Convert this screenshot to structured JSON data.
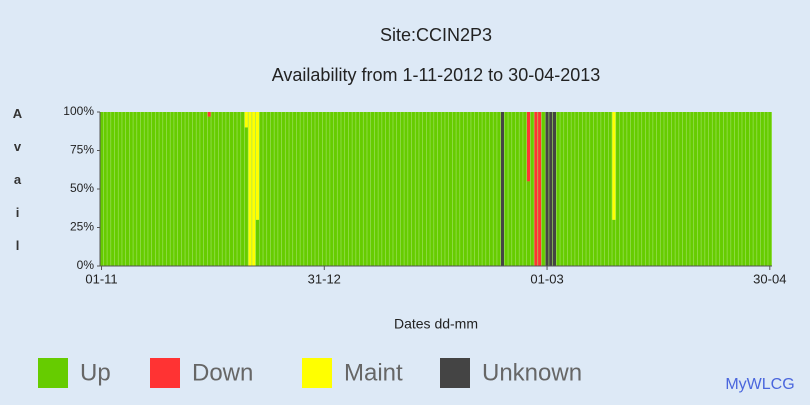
{
  "chart_data": {
    "type": "stacked_bar",
    "title": "Site:CCIN2P3",
    "subtitle": "Availability from 1-11-2012 to 30-04-2013",
    "x_label": "Dates dd-mm",
    "y_label": "Avail",
    "footer": "MyWLCG",
    "categories": [
      "01-11",
      null,
      null,
      null,
      null,
      null,
      null,
      null,
      null,
      null,
      null,
      null,
      null,
      null,
      null,
      null,
      null,
      null,
      null,
      null,
      null,
      null,
      null,
      null,
      null,
      null,
      null,
      null,
      null,
      null,
      null,
      null,
      null,
      null,
      null,
      null,
      null,
      null,
      null,
      null,
      null,
      null,
      null,
      null,
      null,
      null,
      null,
      null,
      null,
      null,
      null,
      null,
      null,
      null,
      null,
      null,
      null,
      null,
      null,
      null,
      "31-12",
      null,
      null,
      null,
      null,
      null,
      null,
      null,
      null,
      null,
      null,
      null,
      null,
      null,
      null,
      null,
      null,
      null,
      null,
      null,
      null,
      null,
      null,
      null,
      null,
      null,
      null,
      null,
      null,
      null,
      null,
      null,
      null,
      null,
      null,
      null,
      null,
      null,
      null,
      null,
      null,
      null,
      null,
      null,
      null,
      null,
      null,
      null,
      null,
      null,
      null,
      null,
      null,
      null,
      null,
      null,
      null,
      null,
      null,
      null,
      "01-03",
      null,
      null,
      null,
      null,
      null,
      null,
      null,
      null,
      null,
      null,
      null,
      null,
      null,
      null,
      null,
      null,
      null,
      null,
      null,
      null,
      null,
      null,
      null,
      null,
      null,
      null,
      null,
      null,
      null,
      null,
      null,
      null,
      null,
      null,
      null,
      null,
      null,
      null,
      null,
      null,
      null,
      null,
      null,
      null,
      null,
      null,
      null,
      null,
      null,
      null,
      null,
      null,
      null,
      null,
      null,
      null,
      null,
      null,
      null,
      "30-04"
    ],
    "series": [
      {
        "name": "Up",
        "color": "#66cc00",
        "values": [
          100,
          100,
          100,
          100,
          100,
          100,
          100,
          100,
          100,
          100,
          100,
          100,
          100,
          100,
          100,
          100,
          100,
          100,
          100,
          100,
          100,
          100,
          100,
          100,
          100,
          100,
          100,
          100,
          100,
          97,
          100,
          100,
          100,
          100,
          100,
          100,
          100,
          100,
          100,
          90,
          0,
          0,
          30,
          100,
          100,
          100,
          100,
          100,
          100,
          100,
          100,
          100,
          100,
          100,
          100,
          100,
          100,
          100,
          100,
          100,
          100,
          100,
          100,
          100,
          100,
          100,
          100,
          100,
          100,
          100,
          100,
          100,
          100,
          100,
          100,
          100,
          100,
          100,
          100,
          100,
          100,
          100,
          100,
          100,
          100,
          100,
          100,
          100,
          100,
          100,
          100,
          100,
          100,
          100,
          100,
          100,
          100,
          100,
          100,
          100,
          100,
          100,
          100,
          100,
          100,
          100,
          100,
          100,
          0,
          100,
          100,
          100,
          100,
          100,
          100,
          55,
          100,
          0,
          0,
          100,
          0,
          0,
          0,
          100,
          100,
          100,
          100,
          100,
          100,
          100,
          100,
          100,
          100,
          100,
          100,
          100,
          100,
          100,
          30,
          100,
          100,
          100,
          100,
          100,
          100,
          100,
          100,
          100,
          100,
          100,
          100,
          100,
          100,
          100,
          100,
          100,
          100,
          100,
          100,
          100,
          100,
          100,
          100,
          100,
          100,
          100,
          100,
          100,
          100,
          100,
          100,
          100,
          100,
          100,
          100,
          100,
          100,
          100,
          100,
          100,
          100
        ]
      },
      {
        "name": "Down",
        "color": "#ff3333",
        "values": [
          0,
          0,
          0,
          0,
          0,
          0,
          0,
          0,
          0,
          0,
          0,
          0,
          0,
          0,
          0,
          0,
          0,
          0,
          0,
          0,
          0,
          0,
          0,
          0,
          0,
          0,
          0,
          0,
          0,
          3,
          0,
          0,
          0,
          0,
          0,
          0,
          0,
          0,
          0,
          0,
          0,
          0,
          0,
          0,
          0,
          0,
          0,
          0,
          0,
          0,
          0,
          0,
          0,
          0,
          0,
          0,
          0,
          0,
          0,
          0,
          0,
          0,
          0,
          0,
          0,
          0,
          0,
          0,
          0,
          0,
          0,
          0,
          0,
          0,
          0,
          0,
          0,
          0,
          0,
          0,
          0,
          0,
          0,
          0,
          0,
          0,
          0,
          0,
          0,
          0,
          0,
          0,
          0,
          0,
          0,
          0,
          0,
          0,
          0,
          0,
          0,
          0,
          0,
          0,
          0,
          0,
          0,
          0,
          0,
          0,
          0,
          0,
          0,
          0,
          0,
          45,
          0,
          100,
          100,
          0,
          0,
          0,
          0,
          0,
          0,
          0,
          0,
          0,
          0,
          0,
          0,
          0,
          0,
          0,
          0,
          0,
          0,
          0,
          0,
          0,
          0,
          0,
          0,
          0,
          0,
          0,
          0,
          0,
          0,
          0,
          0,
          0,
          0,
          0,
          0,
          0,
          0,
          0,
          0,
          0,
          0,
          0,
          0,
          0,
          0,
          0,
          0,
          0,
          0,
          0,
          0,
          0,
          0,
          0,
          0,
          0,
          0,
          0,
          0,
          0,
          0
        ]
      },
      {
        "name": "Maint",
        "color": "#ffff00",
        "values": [
          0,
          0,
          0,
          0,
          0,
          0,
          0,
          0,
          0,
          0,
          0,
          0,
          0,
          0,
          0,
          0,
          0,
          0,
          0,
          0,
          0,
          0,
          0,
          0,
          0,
          0,
          0,
          0,
          0,
          0,
          0,
          0,
          0,
          0,
          0,
          0,
          0,
          0,
          0,
          10,
          100,
          100,
          70,
          0,
          0,
          0,
          0,
          0,
          0,
          0,
          0,
          0,
          0,
          0,
          0,
          0,
          0,
          0,
          0,
          0,
          0,
          0,
          0,
          0,
          0,
          0,
          0,
          0,
          0,
          0,
          0,
          0,
          0,
          0,
          0,
          0,
          0,
          0,
          0,
          0,
          0,
          0,
          0,
          0,
          0,
          0,
          0,
          0,
          0,
          0,
          0,
          0,
          0,
          0,
          0,
          0,
          0,
          0,
          0,
          0,
          0,
          0,
          0,
          0,
          0,
          0,
          0,
          0,
          0,
          0,
          0,
          0,
          0,
          0,
          0,
          0,
          0,
          0,
          0,
          0,
          0,
          0,
          0,
          0,
          0,
          0,
          0,
          0,
          0,
          0,
          0,
          0,
          0,
          0,
          0,
          0,
          0,
          0,
          70,
          0,
          0,
          0,
          0,
          0,
          0,
          0,
          0,
          0,
          0,
          0,
          0,
          0,
          0,
          0,
          0,
          0,
          0,
          0,
          0,
          0,
          0,
          0,
          0,
          0,
          0,
          0,
          0,
          0,
          0,
          0,
          0,
          0,
          0,
          0,
          0,
          0,
          0,
          0,
          0,
          0,
          0
        ]
      },
      {
        "name": "Unknown",
        "color": "#444444",
        "values": [
          0,
          0,
          0,
          0,
          0,
          0,
          0,
          0,
          0,
          0,
          0,
          0,
          0,
          0,
          0,
          0,
          0,
          0,
          0,
          0,
          0,
          0,
          0,
          0,
          0,
          0,
          0,
          0,
          0,
          0,
          0,
          0,
          0,
          0,
          0,
          0,
          0,
          0,
          0,
          0,
          0,
          0,
          0,
          0,
          0,
          0,
          0,
          0,
          0,
          0,
          0,
          0,
          0,
          0,
          0,
          0,
          0,
          0,
          0,
          0,
          0,
          0,
          0,
          0,
          0,
          0,
          0,
          0,
          0,
          0,
          0,
          0,
          0,
          0,
          0,
          0,
          0,
          0,
          0,
          0,
          0,
          0,
          0,
          0,
          0,
          0,
          0,
          0,
          0,
          0,
          0,
          0,
          0,
          0,
          0,
          0,
          0,
          0,
          0,
          0,
          0,
          0,
          0,
          0,
          0,
          0,
          0,
          0,
          100,
          0,
          0,
          0,
          0,
          0,
          0,
          0,
          0,
          0,
          0,
          0,
          100,
          100,
          100,
          0,
          0,
          0,
          0,
          0,
          0,
          0,
          0,
          0,
          0,
          0,
          0,
          0,
          0,
          0,
          0,
          0,
          0,
          0,
          0,
          0,
          0,
          0,
          0,
          0,
          0,
          0,
          0,
          0,
          0,
          0,
          0,
          0,
          0,
          0,
          0,
          0,
          0,
          0,
          0,
          0,
          0,
          0,
          0,
          0,
          0,
          0,
          0,
          0,
          0,
          0,
          0,
          0,
          0,
          0,
          0,
          0,
          0
        ]
      }
    ],
    "ylim": [
      0,
      100
    ],
    "yticks": [
      {
        "value": 0,
        "label": "0%"
      },
      {
        "value": 25,
        "label": "25%"
      },
      {
        "value": 50,
        "label": "50%"
      },
      {
        "value": 75,
        "label": "75%"
      },
      {
        "value": 100,
        "label": "100%"
      }
    ]
  }
}
